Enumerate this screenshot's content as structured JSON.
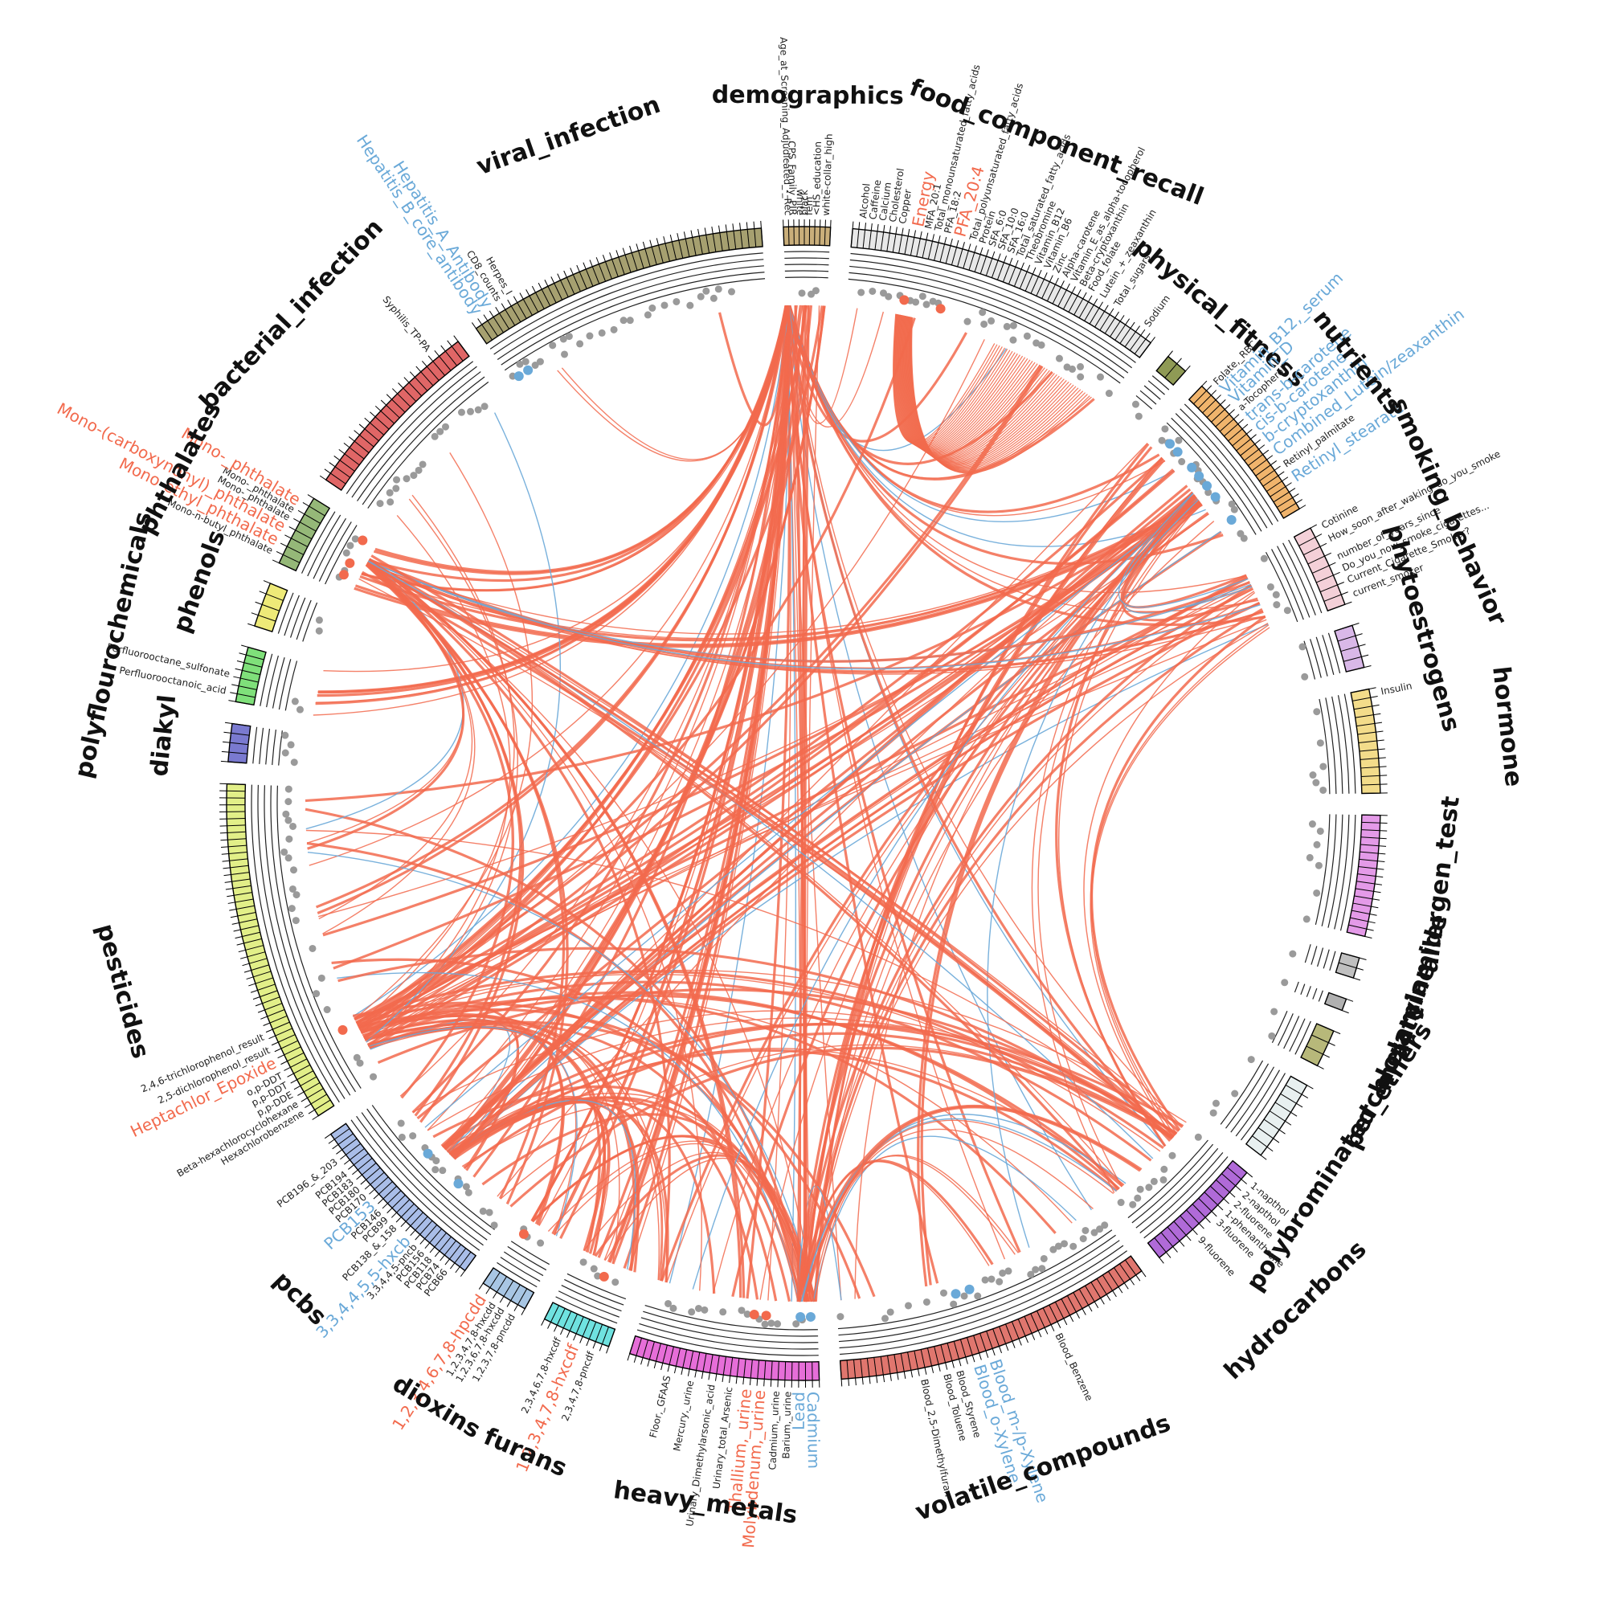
{
  "colors": {
    "positive": "#f26a4d",
    "negative": "#6aa9d8",
    "neutral_dot": "#9a9a9a",
    "ring_line": "#222222"
  },
  "chart_data": {
    "type": "chord",
    "title": "",
    "categories": [
      {
        "name": "demographics",
        "color": "#c9ae7a",
        "span": 2.7,
        "n": 9,
        "labels": [
          {
            "text": "Age_at_Screening_Adjudicated_-_Rec",
            "pos": 0.1
          },
          {
            "text": "CPS_Family_PIR",
            "pos": 0.2
          },
          {
            "text": "white",
            "pos": 0.35
          },
          {
            "text": "black",
            "pos": 0.45
          },
          {
            "text": "fem",
            "pos": 0.55
          },
          {
            "text": "<HS_education",
            "pos": 0.7
          },
          {
            "text": "white-collar_high",
            "pos": 0.9
          }
        ]
      },
      {
        "name": "food_component_recall",
        "color": "#e8e8e8",
        "span": 18.5,
        "n": 52,
        "labels": [
          {
            "text": "Alcohol",
            "pos": 0.03
          },
          {
            "text": "Caffeine",
            "pos": 0.06
          },
          {
            "text": "Calcium",
            "pos": 0.09
          },
          {
            "text": "Cholesterol",
            "pos": 0.12
          },
          {
            "text": "Copper",
            "pos": 0.15
          },
          {
            "text": "Energy",
            "pos": 0.2,
            "hl": "pos"
          },
          {
            "text": "MFA_20:1",
            "pos": 0.23
          },
          {
            "text": "Total_monounsaturated_fatty_acids",
            "pos": 0.26
          },
          {
            "text": "PFA_18:2",
            "pos": 0.29
          },
          {
            "text": "PFA_20:4",
            "pos": 0.33,
            "hl": "pos"
          },
          {
            "text": "Total_polyunsaturated_fatty_acids",
            "pos": 0.37
          },
          {
            "text": "Protein",
            "pos": 0.4
          },
          {
            "text": "SFA_6:0",
            "pos": 0.43
          },
          {
            "text": "SFA_10:0",
            "pos": 0.46
          },
          {
            "text": "SFA_16:0",
            "pos": 0.49
          },
          {
            "text": "Total_saturated_fatty_acids",
            "pos": 0.52
          },
          {
            "text": "Theobromine",
            "pos": 0.55
          },
          {
            "text": "Vitamin_B12",
            "pos": 0.58
          },
          {
            "text": "Vitamin_B6",
            "pos": 0.61
          },
          {
            "text": "Zinc",
            "pos": 0.64
          },
          {
            "text": "Alpha-carotene",
            "pos": 0.67
          },
          {
            "text": "Vitamin_E_as_alpha-tocopherol",
            "pos": 0.7
          },
          {
            "text": "Beta-cryptoxanthin",
            "pos": 0.73
          },
          {
            "text": "Food_folate",
            "pos": 0.76
          },
          {
            "text": "Lutein_+_zeaxanthin",
            "pos": 0.8
          },
          {
            "text": "Total_sugars",
            "pos": 0.85
          },
          {
            "text": "Sodium",
            "pos": 0.96
          }
        ]
      },
      {
        "name": "physical_fitness",
        "color": "#8f9a55",
        "span": 1.3,
        "n": 2,
        "labels": []
      },
      {
        "name": "nutrients",
        "color": "#f0b46c",
        "span": 9,
        "n": 24,
        "labels": [
          {
            "text": "Folate,_RBC",
            "pos": 0.05
          },
          {
            "text": "Vitamin_B12,_serum",
            "pos": 0.12,
            "hl": "neg"
          },
          {
            "text": "Vitamin_D",
            "pos": 0.2,
            "hl": "neg"
          },
          {
            "text": "a-Tocopherol",
            "pos": 0.27
          },
          {
            "text": "trans-b-carotene",
            "pos": 0.35,
            "hl": "neg"
          },
          {
            "text": "cis-b-carotene",
            "pos": 0.43,
            "hl": "neg"
          },
          {
            "text": "b-cryptoxanthin",
            "pos": 0.52,
            "hl": "neg"
          },
          {
            "text": "Combined_Lutein/zeaxanthin",
            "pos": 0.62,
            "hl": "neg"
          },
          {
            "text": "Retinyl_palmitate",
            "pos": 0.72
          },
          {
            "text": "Retinyl_stearate",
            "pos": 0.82,
            "hl": "neg"
          }
        ]
      },
      {
        "name": "smoking_behavior",
        "color": "#f4d0d8",
        "span": 4.8,
        "n": 8,
        "labels": [
          {
            "text": "Cotinine",
            "pos": 0.05
          },
          {
            "text": "How_soon_after_waking_do_you_smoke",
            "pos": 0.22
          },
          {
            "text": "number_of_years_since",
            "pos": 0.45
          },
          {
            "text": "Do_you_now_smoke_cigarettes...",
            "pos": 0.6
          },
          {
            "text": "Current_Cigarette_Smoker?",
            "pos": 0.75
          },
          {
            "text": "current_smoker",
            "pos": 0.92
          }
        ]
      },
      {
        "name": "phytoestrogens",
        "color": "#d9b8e8",
        "span": 2.5,
        "n": 4,
        "labels": []
      },
      {
        "name": "hormone",
        "color": "#f3dc8a",
        "span": 6,
        "n": 12,
        "labels": [
          {
            "text": "Insulin",
            "pos": 0.05
          }
        ]
      },
      {
        "name": "allergen_test",
        "color": "#e49ae8",
        "span": 7,
        "n": 16,
        "labels": []
      },
      {
        "name": "acrylamide",
        "color": "#c0c0c0",
        "span": 1.2,
        "n": 2,
        "labels": []
      },
      {
        "name": "melamine",
        "color": "#b0b0b0",
        "span": 0.7,
        "n": 1,
        "labels": []
      },
      {
        "name": "perchlorate",
        "color": "#b7b87a",
        "span": 2.2,
        "n": 3,
        "labels": []
      },
      {
        "name": "polybrominated_ethers",
        "color": "#e8f0f0",
        "span": 4.8,
        "n": 8,
        "labels": []
      },
      {
        "name": "hydrocarbons",
        "color": "#b06ad8",
        "span": 7,
        "n": 14,
        "labels": [
          {
            "text": "1-napthol",
            "pos": 0.05
          },
          {
            "text": "2-napthol",
            "pos": 0.15
          },
          {
            "text": "2-fluorene",
            "pos": 0.25
          },
          {
            "text": "1-phenanthrene",
            "pos": 0.35
          },
          {
            "text": "3-fluorene",
            "pos": 0.45
          },
          {
            "text": "9-fluorene",
            "pos": 0.65
          }
        ]
      },
      {
        "name": "volatile_compounds",
        "color": "#e0766e",
        "span": 18.5,
        "n": 46,
        "labels": [
          {
            "text": "Blood_Benzene",
            "pos": 0.32
          },
          {
            "text": "Blood_m-/p-Xylene",
            "pos": 0.53,
            "hl": "neg"
          },
          {
            "text": "Blood_o-Xylene",
            "pos": 0.58,
            "hl": "neg"
          },
          {
            "text": "Blood_Styrene",
            "pos": 0.64
          },
          {
            "text": "Blood_Toluene",
            "pos": 0.68
          },
          {
            "text": "Blood_2,5-Dimethylfuran",
            "pos": 0.75
          }
        ]
      },
      {
        "name": "heavy_metals",
        "color": "#e66ed8",
        "span": 11,
        "n": 28,
        "labels": [
          {
            "text": "Cadmium",
            "pos": 0.04,
            "hl": "neg"
          },
          {
            "text": "Lead",
            "pos": 0.1,
            "hl": "neg"
          },
          {
            "text": "Barium,_urine",
            "pos": 0.16
          },
          {
            "text": "Cadmium,_urine",
            "pos": 0.22
          },
          {
            "text": "Molybdenum,_urine",
            "pos": 0.3,
            "hl": "pos"
          },
          {
            "text": "Thallium,_urine",
            "pos": 0.37,
            "hl": "pos"
          },
          {
            "text": "Urinary_total_Arsenic",
            "pos": 0.46
          },
          {
            "text": "Urinary_Dimethylarsonic_acid",
            "pos": 0.55
          },
          {
            "text": "Mercury,_urine",
            "pos": 0.66
          },
          {
            "text": "Floor,_GFAAS",
            "pos": 0.78
          }
        ]
      },
      {
        "name": "furans",
        "color": "#6fe2e0",
        "span": 4,
        "n": 10,
        "labels": [
          {
            "text": "2,3,4,7,8-pncdf",
            "pos": 0.2
          },
          {
            "text": "1,2,3,4,7,8-hxcdf",
            "pos": 0.45,
            "hl": "pos"
          },
          {
            "text": "2,3,4,6,7,8-hxcdf",
            "pos": 0.7
          }
        ]
      },
      {
        "name": "dioxins",
        "color": "#a8c6e4",
        "span": 2.8,
        "n": 6,
        "labels": [
          {
            "text": "1,2,3,7,8-pncdd",
            "pos": 0.15
          },
          {
            "text": "1,2,3,6,7,8-hxcdd",
            "pos": 0.4
          },
          {
            "text": "1,2,3,4,7,8-hxcdd",
            "pos": 0.6
          },
          {
            "text": "1,2,3,4,6,7,8-hpcdd",
            "pos": 0.85,
            "hl": "pos"
          }
        ]
      },
      {
        "name": "pcbs",
        "color": "#a9bde8",
        "span": 11,
        "n": 30,
        "labels": [
          {
            "text": "PCB66",
            "pos": 0.08
          },
          {
            "text": "PCB74",
            "pos": 0.13
          },
          {
            "text": "PCB118",
            "pos": 0.18
          },
          {
            "text": "PCB156",
            "pos": 0.23
          },
          {
            "text": "3,3,4,4,5-pncb",
            "pos": 0.28
          },
          {
            "text": "3,3,4,4,5,5-hxcb",
            "pos": 0.33,
            "hl": "neg"
          },
          {
            "text": "PCB138_&_158",
            "pos": 0.42
          },
          {
            "text": "PCB99",
            "pos": 0.48
          },
          {
            "text": "PCB146",
            "pos": 0.53
          },
          {
            "text": "PCB153",
            "pos": 0.58,
            "hl": "neg"
          },
          {
            "text": "PCB170",
            "pos": 0.64
          },
          {
            "text": "PCB180",
            "pos": 0.69
          },
          {
            "text": "PCB183",
            "pos": 0.74
          },
          {
            "text": "PCB194",
            "pos": 0.79
          },
          {
            "text": "PCB196_&_203",
            "pos": 0.87
          }
        ]
      },
      {
        "name": "pesticides",
        "color": "#e2ef88",
        "span": 20,
        "n": 50,
        "labels": [
          {
            "text": "Hexachlorobenzene",
            "pos": 0.03
          },
          {
            "text": "Beta-hexachlorocyclohexane",
            "pos": 0.06
          },
          {
            "text": "p,p-DDE",
            "pos": 0.09
          },
          {
            "text": "p,p-DDT",
            "pos": 0.12
          },
          {
            "text": "o,p-DDT",
            "pos": 0.15
          },
          {
            "text": "Heptachlor_Epoxide",
            "pos": 0.19,
            "hl": "pos"
          },
          {
            "text": "2,5-dichlorophenol_result",
            "pos": 0.23
          },
          {
            "text": "2,4,6-trichlorophenol_result",
            "pos": 0.27
          }
        ]
      },
      {
        "name": "diakyl",
        "color": "#7a7ad0",
        "span": 2.2,
        "n": 4,
        "labels": []
      },
      {
        "name": "polyflourochemicals",
        "color": "#7fe07a",
        "span": 3.2,
        "n": 7,
        "labels": [
          {
            "text": "Perfluorooctanoic_acid",
            "pos": 0.15
          },
          {
            "text": "Perfluorooctane_sulfonate",
            "pos": 0.45
          }
        ]
      },
      {
        "name": "phenols",
        "color": "#eeea78",
        "span": 2.6,
        "n": 4,
        "labels": []
      },
      {
        "name": "phthalates",
        "color": "#95b878",
        "span": 4.2,
        "n": 8,
        "labels": [
          {
            "text": "Mono-n-butyl_phthalate",
            "pos": 0.1
          },
          {
            "text": "Mono-ethyl_phthalate",
            "pos": 0.25,
            "hl": "pos"
          },
          {
            "text": "Mono-(carboxynonyl)_phthalate",
            "pos": 0.45,
            "hl": "pos"
          },
          {
            "text": "Mono-_phthalate",
            "pos": 0.6
          },
          {
            "text": "Mono-_phthalate",
            "pos": 0.72
          },
          {
            "text": "Mono-_phthalate",
            "pos": 0.85,
            "hl": "pos"
          }
        ]
      },
      {
        "name": "bacterial_infection",
        "color": "#e06666",
        "span": 11,
        "n": 24,
        "labels": [
          {
            "text": "Syphilis_TP-PA",
            "pos": 0.85
          }
        ]
      },
      {
        "name": "viral_infection",
        "color": "#a6a070",
        "span": 17.5,
        "n": 44,
        "labels": [
          {
            "text": "Hepatitis_B_core_antibody",
            "pos": 0.03,
            "hl": "neg"
          },
          {
            "text": "Hepatitis_A_Antibody",
            "pos": 0.07,
            "hl": "neg"
          },
          {
            "text": "CD8_counts",
            "pos": 0.11
          },
          {
            "text": "Herpes_I",
            "pos": 0.15
          }
        ]
      }
    ],
    "hubs": [
      {
        "cat": "demographics",
        "pos": 0.05,
        "fan": [
          "food_component_recall",
          "nutrients",
          "smoking_behavior",
          "volatile_compounds",
          "heavy_metals",
          "furans",
          "dioxins",
          "pcbs",
          "pesticides",
          "phthalates",
          "polyflourochemicals",
          "viral_infection",
          "hydrocarbons"
        ]
      },
      {
        "cat": "pesticides",
        "pos": 0.15,
        "fan": [
          "nutrients",
          "smoking_behavior",
          "hydrocarbons",
          "heavy_metals",
          "volatile_compounds",
          "food_component_recall",
          "demographics",
          "pcbs",
          "furans",
          "dioxins",
          "bacterial_infection"
        ]
      },
      {
        "cat": "pcbs",
        "pos": 0.5,
        "fan": [
          "heavy_metals",
          "furans",
          "hydrocarbons",
          "nutrients",
          "smoking_behavior",
          "demographics"
        ]
      },
      {
        "cat": "heavy_metals",
        "pos": 0.06,
        "fan": [
          "pcbs",
          "pesticides",
          "dioxins",
          "furans",
          "nutrients",
          "smoking_behavior",
          "volatile_compounds",
          "demographics",
          "hydrocarbons"
        ]
      },
      {
        "cat": "nutrients",
        "pos": 0.55,
        "fan": [
          "pesticides",
          "pcbs",
          "heavy_metals",
          "phthalates",
          "volatile_compounds",
          "hydrocarbons",
          "smoking_behavior"
        ]
      },
      {
        "cat": "phthalates",
        "pos": 0.6,
        "fan": [
          "pesticides",
          "pcbs",
          "heavy_metals",
          "smoking_behavior",
          "hydrocarbons"
        ]
      },
      {
        "cat": "hydrocarbons",
        "pos": 0.15,
        "fan": [
          "pesticides",
          "pcbs",
          "phthalates",
          "smoking_behavior"
        ]
      }
    ],
    "legend": "none"
  }
}
